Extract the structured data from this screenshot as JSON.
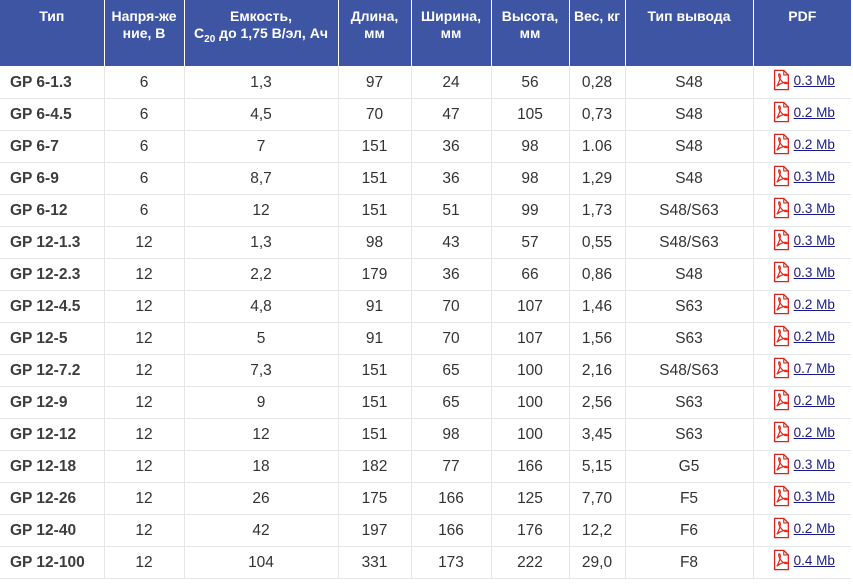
{
  "headers": {
    "type": "Тип",
    "voltage": "Напря-жение, В",
    "capacity_prefix": "Емкость,",
    "capacity_c": "C",
    "capacity_sub": "20",
    "capacity_rest": " до 1,75 В/эл, Ач",
    "length": "Длина, мм",
    "width": "Ширина, мм",
    "height": "Высота, мм",
    "weight": "Вес, кг",
    "terminal": "Тип вывода",
    "pdf": "PDF"
  },
  "rows": [
    {
      "type": "GP 6-1.3",
      "voltage": "6",
      "capacity": "1,3",
      "length": "97",
      "width": "24",
      "height": "56",
      "weight": "0,28",
      "terminal": "S48",
      "pdf": "0.3 Mb"
    },
    {
      "type": "GP 6-4.5",
      "voltage": "6",
      "capacity": "4,5",
      "length": "70",
      "width": "47",
      "height": "105",
      "weight": "0,73",
      "terminal": "S48",
      "pdf": "0.2 Mb"
    },
    {
      "type": "GP 6-7",
      "voltage": "6",
      "capacity": "7",
      "length": "151",
      "width": "36",
      "height": "98",
      "weight": "1.06",
      "terminal": "S48",
      "pdf": "0.2 Mb"
    },
    {
      "type": "GP 6-9",
      "voltage": "6",
      "capacity": "8,7",
      "length": "151",
      "width": "36",
      "height": "98",
      "weight": "1,29",
      "terminal": "S48",
      "pdf": "0.3 Mb"
    },
    {
      "type": "GP 6-12",
      "voltage": "6",
      "capacity": "12",
      "length": "151",
      "width": "51",
      "height": "99",
      "weight": "1,73",
      "terminal": "S48/S63",
      "pdf": "0.3 Mb"
    },
    {
      "type": "GP 12-1.3",
      "voltage": "12",
      "capacity": "1,3",
      "length": "98",
      "width": "43",
      "height": "57",
      "weight": "0,55",
      "terminal": "S48/S63",
      "pdf": "0.3 Mb"
    },
    {
      "type": "GP 12-2.3",
      "voltage": "12",
      "capacity": "2,2",
      "length": "179",
      "width": "36",
      "height": "66",
      "weight": "0,86",
      "terminal": "S48",
      "pdf": "0.3 Mb"
    },
    {
      "type": "GP 12-4.5",
      "voltage": "12",
      "capacity": "4,8",
      "length": "91",
      "width": "70",
      "height": "107",
      "weight": "1,46",
      "terminal": "S63",
      "pdf": "0.2 Mb"
    },
    {
      "type": "GP 12-5",
      "voltage": "12",
      "capacity": "5",
      "length": "91",
      "width": "70",
      "height": "107",
      "weight": "1,56",
      "terminal": "S63",
      "pdf": "0.2 Mb"
    },
    {
      "type": "GP 12-7.2",
      "voltage": "12",
      "capacity": "7,3",
      "length": "151",
      "width": "65",
      "height": "100",
      "weight": "2,16",
      "terminal": "S48/S63",
      "pdf": "0.7 Mb"
    },
    {
      "type": "GP 12-9",
      "voltage": "12",
      "capacity": "9",
      "length": "151",
      "width": "65",
      "height": "100",
      "weight": "2,56",
      "terminal": "S63",
      "pdf": "0.2 Mb"
    },
    {
      "type": "GP 12-12",
      "voltage": "12",
      "capacity": "12",
      "length": "151",
      "width": "98",
      "height": "100",
      "weight": "3,45",
      "terminal": "S63",
      "pdf": "0.2 Mb"
    },
    {
      "type": "GP 12-18",
      "voltage": "12",
      "capacity": "18",
      "length": "182",
      "width": "77",
      "height": "166",
      "weight": "5,15",
      "terminal": "G5",
      "pdf": "0.3 Mb"
    },
    {
      "type": "GP 12-26",
      "voltage": "12",
      "capacity": "26",
      "length": "175",
      "width": "166",
      "height": "125",
      "weight": "7,70",
      "terminal": "F5",
      "pdf": "0.3 Mb"
    },
    {
      "type": "GP 12-40",
      "voltage": "12",
      "capacity": "42",
      "length": "197",
      "width": "166",
      "height": "176",
      "weight": "12,2",
      "terminal": "F6",
      "pdf": "0.2 Mb"
    },
    {
      "type": "GP 12-100",
      "voltage": "12",
      "capacity": "104",
      "length": "331",
      "width": "173",
      "height": "222",
      "weight": "29,0",
      "terminal": "F8",
      "pdf": "0.4 Mb"
    }
  ],
  "colors": {
    "header_bg": "#3d55a3",
    "link": "#1a1a8c",
    "pdf_icon": "#d9261c"
  },
  "icons": {
    "pdf": "pdf-file-icon"
  }
}
